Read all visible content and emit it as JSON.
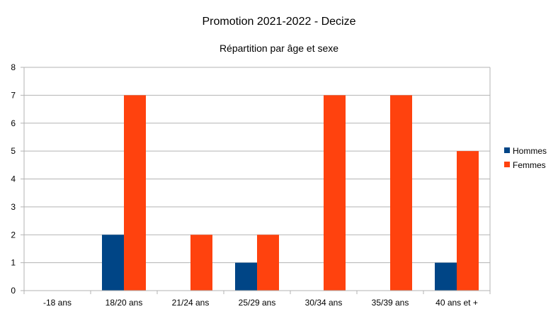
{
  "chart_data": {
    "type": "bar",
    "title": "Promotion 2021-2022 - Decize",
    "subtitle": "Répartition par âge et sexe",
    "categories": [
      "-18 ans",
      "18/20 ans",
      "21/24 ans",
      "25/29 ans",
      "30/34 ans",
      "35/39 ans",
      "40 ans et +"
    ],
    "series": [
      {
        "name": "Hommes",
        "values": [
          0,
          2,
          0,
          1,
          0,
          0,
          1
        ],
        "color": "#004586"
      },
      {
        "name": "Femmes",
        "values": [
          0,
          7,
          2,
          2,
          7,
          7,
          5
        ],
        "color": "#ff420e"
      }
    ],
    "ylim": [
      0,
      8
    ],
    "yticks": [
      0,
      1,
      2,
      3,
      4,
      5,
      6,
      7,
      8
    ],
    "grid": true,
    "legend_position": "right"
  }
}
